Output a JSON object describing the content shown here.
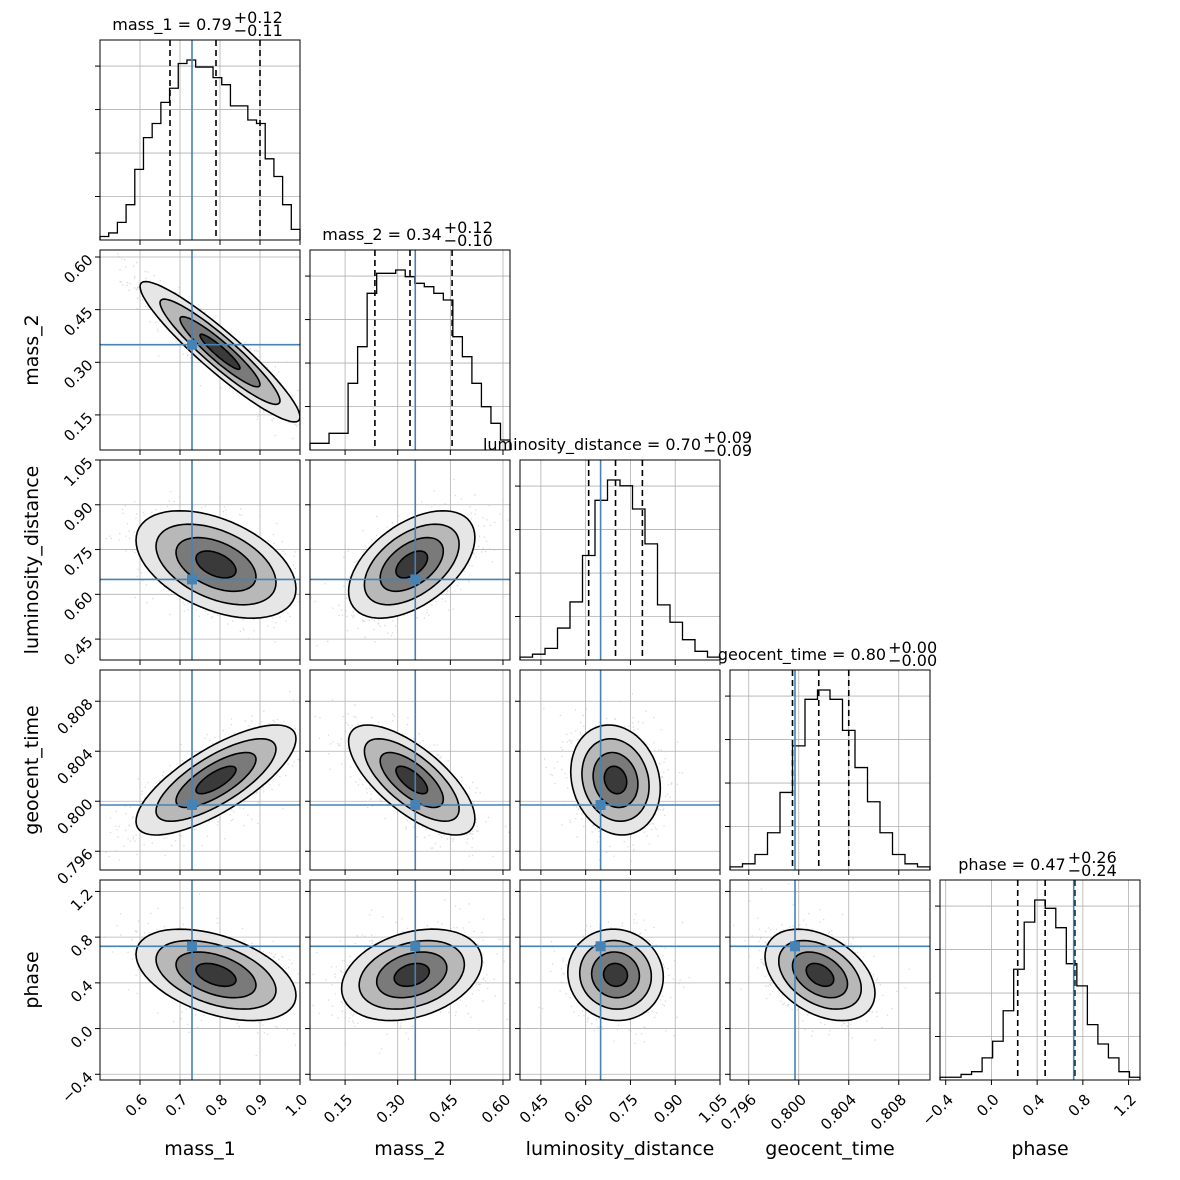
{
  "chart_data": {
    "type": "corner",
    "parameters": [
      "mass_1",
      "mass_2",
      "luminosity_distance",
      "geocent_time",
      "phase"
    ],
    "truth_color": "#4682b4",
    "grid": true,
    "axes": [
      {
        "name": "mass_1",
        "range": [
          0.5,
          1.0
        ],
        "ticks": [
          0.6,
          0.7,
          0.8,
          0.9,
          1.0
        ],
        "tick_labels": [
          "0.6",
          "0.7",
          "0.8",
          "0.9",
          "1.0"
        ],
        "title": "mass_1 = 0.79",
        "err_plus": "+0.12",
        "err_minus": "−0.11",
        "median": 0.79,
        "quantiles": [
          0.675,
          0.79,
          0.9
        ],
        "truth": 0.73
      },
      {
        "name": "mass_2",
        "range": [
          0.05,
          0.62
        ],
        "ticks": [
          0.15,
          0.3,
          0.45,
          0.6
        ],
        "tick_labels": [
          "0.15",
          "0.30",
          "0.45",
          "0.60"
        ],
        "title": "mass_2 = 0.34",
        "err_plus": "+0.12",
        "err_minus": "−0.10",
        "median": 0.335,
        "quantiles": [
          0.235,
          0.335,
          0.455
        ],
        "truth": 0.35
      },
      {
        "name": "luminosity_distance",
        "range": [
          0.38,
          1.05
        ],
        "ticks": [
          0.45,
          0.6,
          0.75,
          0.9,
          1.05
        ],
        "tick_labels": [
          "0.45",
          "0.60",
          "0.75",
          "0.90",
          "1.05"
        ],
        "title": "luminosity_distance = 0.70",
        "err_plus": "+0.09",
        "err_minus": "−0.09",
        "median": 0.7,
        "quantiles": [
          0.61,
          0.7,
          0.79
        ],
        "truth": 0.65
      },
      {
        "name": "geocent_time",
        "range": [
          0.7945,
          0.8105
        ],
        "ticks": [
          0.796,
          0.8,
          0.804,
          0.808
        ],
        "tick_labels": [
          "0.796",
          "0.800",
          "0.804",
          "0.808"
        ],
        "title": "geocent_time = 0.80",
        "err_plus": "+0.00",
        "err_minus": "−0.00",
        "median": 0.8016,
        "quantiles": [
          0.7995,
          0.8016,
          0.804
        ],
        "truth": 0.7997
      },
      {
        "name": "phase",
        "range": [
          -0.45,
          1.3
        ],
        "ticks": [
          -0.4,
          0.0,
          0.4,
          0.8,
          1.2
        ],
        "tick_labels": [
          "−0.4",
          "0.0",
          "0.4",
          "0.8",
          "1.2"
        ],
        "title": "phase = 0.47",
        "err_plus": "+0.26",
        "err_minus": "−0.24",
        "median": 0.47,
        "quantiles": [
          0.23,
          0.47,
          0.73
        ],
        "truth": 0.72
      }
    ],
    "histograms": [
      {
        "param": "mass_1",
        "counts": [
          1,
          2,
          5,
          10,
          20,
          29,
          33,
          39,
          43,
          50,
          51,
          49,
          49,
          46,
          44,
          38,
          38,
          34,
          33,
          23,
          18,
          10,
          3
        ]
      },
      {
        "param": "mass_2",
        "counts": [
          2,
          2,
          5,
          5,
          20,
          31,
          47,
          53,
          53,
          54,
          52,
          50,
          49,
          47,
          45,
          34,
          28,
          20,
          13,
          8,
          3
        ]
      },
      {
        "param": "luminosity_distance",
        "counts": [
          1,
          2,
          4,
          11,
          20,
          36,
          55,
          62,
          60,
          52,
          40,
          19,
          13,
          7,
          3,
          1
        ]
      },
      {
        "param": "geocent_time",
        "counts": [
          1,
          2,
          5,
          12,
          25,
          40,
          55,
          58,
          55,
          45,
          33,
          22,
          12,
          5,
          2,
          1
        ]
      },
      {
        "param": "phase",
        "counts": [
          1,
          1,
          2,
          3,
          8,
          14,
          25,
          40,
          57,
          65,
          62,
          55,
          42,
          34,
          20,
          13,
          8,
          3,
          1
        ]
      }
    ],
    "contour_panels": [
      {
        "x": "mass_1",
        "y": "mass_2",
        "center": [
          0.8,
          0.33
        ],
        "sd": [
          0.1,
          0.1
        ],
        "corr": -0.93
      },
      {
        "x": "mass_1",
        "y": "luminosity_distance",
        "center": [
          0.79,
          0.7
        ],
        "sd": [
          0.1,
          0.09
        ],
        "corr": -0.45
      },
      {
        "x": "mass_2",
        "y": "luminosity_distance",
        "center": [
          0.34,
          0.7
        ],
        "sd": [
          0.09,
          0.09
        ],
        "corr": 0.5
      },
      {
        "x": "mass_1",
        "y": "geocent_time",
        "center": [
          0.79,
          0.8017
        ],
        "sd": [
          0.1,
          0.0022
        ],
        "corr": 0.75
      },
      {
        "x": "mass_2",
        "y": "geocent_time",
        "center": [
          0.34,
          0.8017
        ],
        "sd": [
          0.09,
          0.0022
        ],
        "corr": -0.7
      },
      {
        "x": "luminosity_distance",
        "y": "geocent_time",
        "center": [
          0.7,
          0.8017
        ],
        "sd": [
          0.075,
          0.0022
        ],
        "corr": -0.15
      },
      {
        "x": "mass_1",
        "y": "phase",
        "center": [
          0.79,
          0.47
        ],
        "sd": [
          0.1,
          0.2
        ],
        "corr": -0.45
      },
      {
        "x": "mass_2",
        "y": "phase",
        "center": [
          0.34,
          0.47
        ],
        "sd": [
          0.1,
          0.2
        ],
        "corr": 0.3
      },
      {
        "x": "luminosity_distance",
        "y": "phase",
        "center": [
          0.7,
          0.47
        ],
        "sd": [
          0.08,
          0.2
        ],
        "corr": -0.05
      },
      {
        "x": "geocent_time",
        "y": "phase",
        "center": [
          0.8017,
          0.47
        ],
        "sd": [
          0.0022,
          0.2
        ],
        "corr": -0.4
      }
    ]
  }
}
